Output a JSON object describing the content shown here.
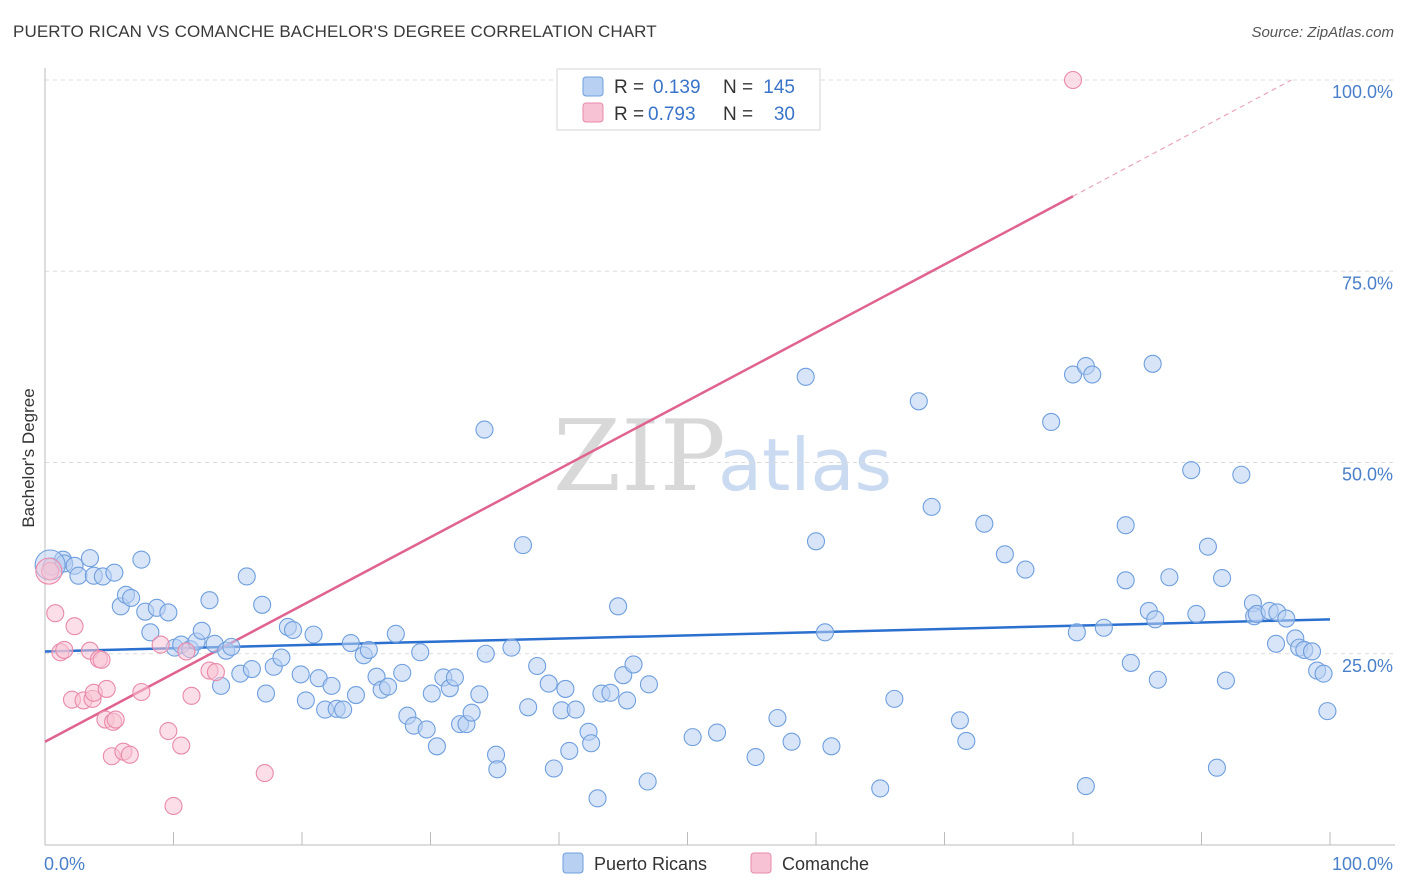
{
  "title": "PUERTO RICAN VS COMANCHE BACHELOR'S DEGREE CORRELATION CHART",
  "source": "Source: ZipAtlas.com",
  "watermark": {
    "zip": "ZIP",
    "atlas": "atlas"
  },
  "legend": {
    "r_label": "R =",
    "n_label": "N =",
    "rows": [
      {
        "r": "0.139",
        "n": "145"
      },
      {
        "r": "0.793",
        "n": "30"
      }
    ]
  },
  "colors": {
    "puerto_rican_fill": "#b8d0f2",
    "puerto_rican_stroke": "#6f9fde",
    "puerto_rican_line": "#2b6fcf",
    "comanche_fill": "#f7c3d4",
    "comanche_stroke": "#e98aaa",
    "comanche_line": "#e0638f",
    "tick_text": "#4a7fc9"
  },
  "chart_data": {
    "type": "scatter",
    "title": "PUERTO RICAN VS COMANCHE BACHELOR'S DEGREE CORRELATION CHART",
    "xlabel": "",
    "ylabel": "Bachelor's Degree",
    "xlim": [
      0,
      100
    ],
    "ylim": [
      0,
      100
    ],
    "x_tick_labels": [
      "0.0%",
      "100.0%"
    ],
    "y_tick_labels": [
      "25.0%",
      "50.0%",
      "75.0%",
      "100.0%"
    ],
    "y_ticks": [
      25,
      50,
      75,
      100
    ],
    "grid": true,
    "legend_position": "top-center",
    "series": [
      {
        "name": "Puerto Ricans",
        "r": 0.139,
        "n": 145,
        "trend": {
          "x": [
            0,
            100
          ],
          "y": [
            25.3,
            29.5
          ]
        },
        "points": [
          [
            0.5,
            36.4
          ],
          [
            1.4,
            37.3
          ],
          [
            1.5,
            36.8
          ],
          [
            2.3,
            36.5
          ],
          [
            2.6,
            35.2
          ],
          [
            3.5,
            37.5
          ],
          [
            3.8,
            35.2
          ],
          [
            4.5,
            35.1
          ],
          [
            5.4,
            35.6
          ],
          [
            5.9,
            31.2
          ],
          [
            6.3,
            32.7
          ],
          [
            6.7,
            32.3
          ],
          [
            7.5,
            37.3
          ],
          [
            7.8,
            30.5
          ],
          [
            8.2,
            27.8
          ],
          [
            8.7,
            31.0
          ],
          [
            9.6,
            30.4
          ],
          [
            10.1,
            25.8
          ],
          [
            10.6,
            26.2
          ],
          [
            11.3,
            25.6
          ],
          [
            11.8,
            26.6
          ],
          [
            12.2,
            28.0
          ],
          [
            12.8,
            32.0
          ],
          [
            13.2,
            26.3
          ],
          [
            13.7,
            20.8
          ],
          [
            14.1,
            25.4
          ],
          [
            14.5,
            25.9
          ],
          [
            15.2,
            22.4
          ],
          [
            15.7,
            35.1
          ],
          [
            16.1,
            23.0
          ],
          [
            16.9,
            31.4
          ],
          [
            17.2,
            19.8
          ],
          [
            17.8,
            23.3
          ],
          [
            18.4,
            24.5
          ],
          [
            18.9,
            28.5
          ],
          [
            19.3,
            28.1
          ],
          [
            19.9,
            22.3
          ],
          [
            20.3,
            18.9
          ],
          [
            20.9,
            27.5
          ],
          [
            21.3,
            21.8
          ],
          [
            21.8,
            17.7
          ],
          [
            22.3,
            20.8
          ],
          [
            22.7,
            17.8
          ],
          [
            23.2,
            17.7
          ],
          [
            23.8,
            26.4
          ],
          [
            24.2,
            19.6
          ],
          [
            24.8,
            24.8
          ],
          [
            25.2,
            25.5
          ],
          [
            25.8,
            22.0
          ],
          [
            26.2,
            20.3
          ],
          [
            26.7,
            20.7
          ],
          [
            27.3,
            27.6
          ],
          [
            27.8,
            22.5
          ],
          [
            28.2,
            16.9
          ],
          [
            28.7,
            15.6
          ],
          [
            29.2,
            25.2
          ],
          [
            29.7,
            15.1
          ],
          [
            30.1,
            19.8
          ],
          [
            30.5,
            12.9
          ],
          [
            31.0,
            21.9
          ],
          [
            31.5,
            20.5
          ],
          [
            31.9,
            21.9
          ],
          [
            32.3,
            15.8
          ],
          [
            32.8,
            15.8
          ],
          [
            33.2,
            17.3
          ],
          [
            33.8,
            19.7
          ],
          [
            34.2,
            54.3
          ],
          [
            34.3,
            25.0
          ],
          [
            35.1,
            11.8
          ],
          [
            35.2,
            9.9
          ],
          [
            36.3,
            25.8
          ],
          [
            37.2,
            39.2
          ],
          [
            37.6,
            18.0
          ],
          [
            38.3,
            23.4
          ],
          [
            39.2,
            21.1
          ],
          [
            39.6,
            10.0
          ],
          [
            40.2,
            17.6
          ],
          [
            40.5,
            20.4
          ],
          [
            40.8,
            12.3
          ],
          [
            41.3,
            17.7
          ],
          [
            42.3,
            14.8
          ],
          [
            42.5,
            13.3
          ],
          [
            43.0,
            6.1
          ],
          [
            43.3,
            19.8
          ],
          [
            44.0,
            19.9
          ],
          [
            44.6,
            31.2
          ],
          [
            45.0,
            22.2
          ],
          [
            45.3,
            18.9
          ],
          [
            45.8,
            23.6
          ],
          [
            46.9,
            8.3
          ],
          [
            47.0,
            21.0
          ],
          [
            50.4,
            14.1
          ],
          [
            52.3,
            14.7
          ],
          [
            55.3,
            11.5
          ],
          [
            57.0,
            16.6
          ],
          [
            58.1,
            13.5
          ],
          [
            59.2,
            61.2
          ],
          [
            60.0,
            39.7
          ],
          [
            60.7,
            27.8
          ],
          [
            61.2,
            12.9
          ],
          [
            65.0,
            7.4
          ],
          [
            66.1,
            19.1
          ],
          [
            68.0,
            58.0
          ],
          [
            69.0,
            44.2
          ],
          [
            71.2,
            16.3
          ],
          [
            71.7,
            13.6
          ],
          [
            73.1,
            42.0
          ],
          [
            74.7,
            38.0
          ],
          [
            76.3,
            36.0
          ],
          [
            78.3,
            55.3
          ],
          [
            80.0,
            61.5
          ],
          [
            80.3,
            27.8
          ],
          [
            81.0,
            62.6
          ],
          [
            81.5,
            61.5
          ],
          [
            82.4,
            28.4
          ],
          [
            84.1,
            41.8
          ],
          [
            84.1,
            34.6
          ],
          [
            84.5,
            23.8
          ],
          [
            85.9,
            30.6
          ],
          [
            86.2,
            62.9
          ],
          [
            86.4,
            29.5
          ],
          [
            86.6,
            21.6
          ],
          [
            87.5,
            35.0
          ],
          [
            89.2,
            49.0
          ],
          [
            89.6,
            30.2
          ],
          [
            90.5,
            39.0
          ],
          [
            91.2,
            10.1
          ],
          [
            91.6,
            34.9
          ],
          [
            91.9,
            21.5
          ],
          [
            93.1,
            48.4
          ],
          [
            94.0,
            31.6
          ],
          [
            94.1,
            29.9
          ],
          [
            94.3,
            30.2
          ],
          [
            95.3,
            30.6
          ],
          [
            95.8,
            26.3
          ],
          [
            95.9,
            30.4
          ],
          [
            96.6,
            29.6
          ],
          [
            97.3,
            27.0
          ],
          [
            97.6,
            25.8
          ],
          [
            98.0,
            25.5
          ],
          [
            98.6,
            25.3
          ],
          [
            99.0,
            22.8
          ],
          [
            99.5,
            22.4
          ],
          [
            99.8,
            17.5
          ],
          [
            81.0,
            7.7
          ]
        ]
      },
      {
        "name": "Comanche",
        "r": 0.793,
        "n": 30,
        "trend": {
          "x": [
            0,
            80
          ],
          "y": [
            13.5,
            84.8
          ]
        },
        "trend_dashed": {
          "x": [
            80,
            97
          ],
          "y": [
            84.8,
            100
          ]
        },
        "points": [
          [
            0.4,
            35.8
          ],
          [
            0.8,
            30.3
          ],
          [
            1.2,
            25.2
          ],
          [
            1.5,
            25.5
          ],
          [
            2.1,
            19.0
          ],
          [
            2.3,
            28.6
          ],
          [
            3.0,
            18.9
          ],
          [
            3.5,
            25.4
          ],
          [
            3.7,
            19.1
          ],
          [
            3.8,
            19.9
          ],
          [
            4.2,
            24.3
          ],
          [
            4.4,
            24.2
          ],
          [
            4.7,
            16.4
          ],
          [
            4.8,
            20.4
          ],
          [
            5.2,
            11.6
          ],
          [
            5.3,
            16.1
          ],
          [
            5.5,
            16.4
          ],
          [
            6.1,
            12.2
          ],
          [
            6.6,
            11.8
          ],
          [
            7.5,
            20.0
          ],
          [
            9.0,
            26.2
          ],
          [
            9.6,
            14.9
          ],
          [
            10.0,
            5.1
          ],
          [
            10.6,
            13.0
          ],
          [
            11.0,
            25.3
          ],
          [
            11.4,
            19.5
          ],
          [
            12.8,
            22.8
          ],
          [
            13.3,
            22.6
          ],
          [
            17.1,
            9.4
          ],
          [
            80.0,
            100.0
          ]
        ]
      }
    ]
  },
  "bottom_legend": [
    "Puerto Ricans",
    "Comanche"
  ]
}
